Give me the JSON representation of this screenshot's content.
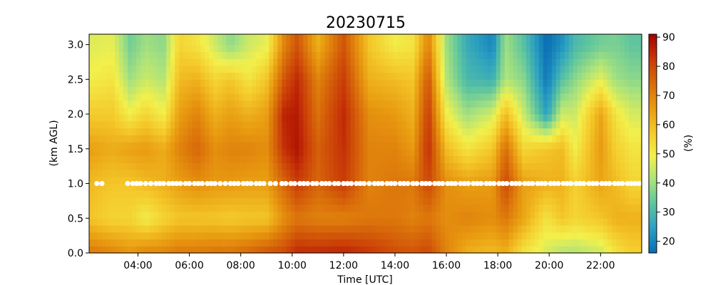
{
  "chart_data": {
    "type": "heatmap",
    "title": "20230715",
    "xlabel": "Time [UTC]",
    "ylabel": "(km AGL)",
    "colorbar_label": "(%)",
    "x_range_hours": [
      2.1,
      23.6
    ],
    "x_ticks": [
      {
        "h": 4,
        "label": "04:00"
      },
      {
        "h": 6,
        "label": "06:00"
      },
      {
        "h": 8,
        "label": "08:00"
      },
      {
        "h": 10,
        "label": "10:00"
      },
      {
        "h": 12,
        "label": "12:00"
      },
      {
        "h": 14,
        "label": "14:00"
      },
      {
        "h": 16,
        "label": "16:00"
      },
      {
        "h": 18,
        "label": "18:00"
      },
      {
        "h": 20,
        "label": "20:00"
      },
      {
        "h": 22,
        "label": "22:00"
      }
    ],
    "y_range_km": [
      0,
      3.15
    ],
    "y_ticks": [
      {
        "v": 0.0,
        "label": "0.0"
      },
      {
        "v": 0.5,
        "label": "0.5"
      },
      {
        "v": 1.0,
        "label": "1.0"
      },
      {
        "v": 1.5,
        "label": "1.5"
      },
      {
        "v": 2.0,
        "label": "2.0"
      },
      {
        "v": 2.5,
        "label": "2.5"
      },
      {
        "v": 3.0,
        "label": "3.0"
      }
    ],
    "color_range": [
      16,
      91
    ],
    "colorbar_ticks": [
      {
        "v": 20,
        "label": "20"
      },
      {
        "v": 30,
        "label": "30"
      },
      {
        "v": 40,
        "label": "40"
      },
      {
        "v": 50,
        "label": "50"
      },
      {
        "v": 60,
        "label": "60"
      },
      {
        "v": 70,
        "label": "70"
      },
      {
        "v": 80,
        "label": "80"
      },
      {
        "v": 90,
        "label": "90"
      }
    ],
    "colormap": [
      "#0a6db4",
      "#2a9fc2",
      "#5cc4a0",
      "#a9e27d",
      "#f2f04c",
      "#f4c82a",
      "#e89a10",
      "#d86a0a",
      "#c83808",
      "#a40000"
    ],
    "profile_levels_km": [
      0.0,
      0.5,
      1.0,
      1.5,
      2.0,
      2.5,
      3.0
    ],
    "profile_keyframes": [
      {
        "h": 2.2,
        "rh": [
          72,
          58,
          60,
          65,
          57,
          50,
          47
        ]
      },
      {
        "h": 3.0,
        "rh": [
          70,
          55,
          58,
          63,
          57,
          52,
          48
        ]
      },
      {
        "h": 3.7,
        "rh": [
          67,
          55,
          58,
          65,
          50,
          40,
          35
        ]
      },
      {
        "h": 4.3,
        "rh": [
          70,
          50,
          60,
          66,
          55,
          45,
          40
        ]
      },
      {
        "h": 5.0,
        "rh": [
          70,
          55,
          62,
          63,
          50,
          42,
          38
        ]
      },
      {
        "h": 5.6,
        "rh": [
          72,
          58,
          65,
          70,
          65,
          60,
          55
        ]
      },
      {
        "h": 6.3,
        "rh": [
          72,
          58,
          68,
          75,
          70,
          62,
          52
        ]
      },
      {
        "h": 7.0,
        "rh": [
          73,
          58,
          66,
          68,
          62,
          55,
          45
        ]
      },
      {
        "h": 7.6,
        "rh": [
          73,
          57,
          66,
          70,
          65,
          58,
          38
        ]
      },
      {
        "h": 8.3,
        "rh": [
          75,
          58,
          65,
          70,
          62,
          52,
          45
        ]
      },
      {
        "h": 9.0,
        "rh": [
          78,
          58,
          65,
          68,
          65,
          58,
          48
        ]
      },
      {
        "h": 9.7,
        "rh": [
          80,
          68,
          75,
          84,
          86,
          78,
          70
        ]
      },
      {
        "h": 10.2,
        "rh": [
          85,
          72,
          82,
          88,
          87,
          85,
          78
        ]
      },
      {
        "h": 11.0,
        "rh": [
          85,
          70,
          75,
          76,
          73,
          70,
          62
        ]
      },
      {
        "h": 12.0,
        "rh": [
          86,
          70,
          82,
          84,
          85,
          82,
          78
        ]
      },
      {
        "h": 13.0,
        "rh": [
          83,
          72,
          70,
          70,
          68,
          62,
          58
        ]
      },
      {
        "h": 14.0,
        "rh": [
          79,
          72,
          72,
          70,
          66,
          60,
          50
        ]
      },
      {
        "h": 14.7,
        "rh": [
          78,
          70,
          72,
          66,
          62,
          58,
          52
        ]
      },
      {
        "h": 15.3,
        "rh": [
          80,
          72,
          80,
          84,
          82,
          78,
          70
        ]
      },
      {
        "h": 16.0,
        "rh": [
          70,
          68,
          68,
          60,
          50,
          42,
          40
        ]
      },
      {
        "h": 16.8,
        "rh": [
          62,
          70,
          65,
          52,
          40,
          30,
          27
        ]
      },
      {
        "h": 17.8,
        "rh": [
          60,
          68,
          66,
          58,
          46,
          28,
          20
        ]
      },
      {
        "h": 18.3,
        "rh": [
          62,
          72,
          80,
          74,
          60,
          42,
          40
        ]
      },
      {
        "h": 19.0,
        "rh": [
          52,
          64,
          65,
          55,
          45,
          38,
          32
        ]
      },
      {
        "h": 19.9,
        "rh": [
          46,
          52,
          62,
          58,
          25,
          18,
          16
        ]
      },
      {
        "h": 20.5,
        "rh": [
          42,
          58,
          62,
          60,
          45,
          32,
          22
        ]
      },
      {
        "h": 21.0,
        "rh": [
          42,
          55,
          56,
          50,
          45,
          38,
          30
        ]
      },
      {
        "h": 22.0,
        "rh": [
          45,
          58,
          64,
          66,
          64,
          48,
          35
        ]
      },
      {
        "h": 22.6,
        "rh": [
          52,
          62,
          60,
          56,
          52,
          40,
          36
        ]
      },
      {
        "h": 23.2,
        "rh": [
          56,
          62,
          55,
          52,
          46,
          38,
          33
        ]
      }
    ],
    "marker_height_km": 1.0,
    "marker_times_h": [
      2.4,
      2.6,
      3.6,
      3.8,
      3.95,
      4.1,
      4.3,
      4.5,
      4.7,
      4.85,
      5.0,
      5.2,
      5.35,
      5.5,
      5.65,
      5.85,
      6.0,
      6.2,
      6.35,
      6.5,
      6.7,
      6.85,
      7.0,
      7.2,
      7.4,
      7.6,
      7.75,
      7.9,
      8.1,
      8.25,
      8.4,
      8.6,
      8.75,
      8.9,
      9.15,
      9.35,
      9.6,
      9.75,
      9.95,
      10.1,
      10.3,
      10.45,
      10.6,
      10.8,
      10.95,
      11.15,
      11.3,
      11.45,
      11.65,
      11.8,
      12.0,
      12.15,
      12.3,
      12.5,
      12.65,
      12.8,
      13.0,
      13.2,
      13.35,
      13.5,
      13.7,
      13.85,
      14.0,
      14.2,
      14.35,
      14.5,
      14.7,
      14.85,
      15.05,
      15.2,
      15.35,
      15.55,
      15.7,
      15.85,
      16.05,
      16.2,
      16.35,
      16.55,
      16.7,
      16.85,
      17.05,
      17.2,
      17.35,
      17.55,
      17.7,
      17.85,
      18.05,
      18.2,
      18.35,
      18.55,
      18.7,
      18.85,
      19.05,
      19.2,
      19.35,
      19.55,
      19.7,
      19.85,
      20.05,
      20.2,
      20.35,
      20.55,
      20.7,
      20.85,
      21.05,
      21.2,
      21.35,
      21.55,
      21.7,
      21.85,
      22.05,
      22.2,
      22.35,
      22.55,
      22.7,
      22.85,
      23.05,
      23.2,
      23.35,
      23.5
    ]
  }
}
